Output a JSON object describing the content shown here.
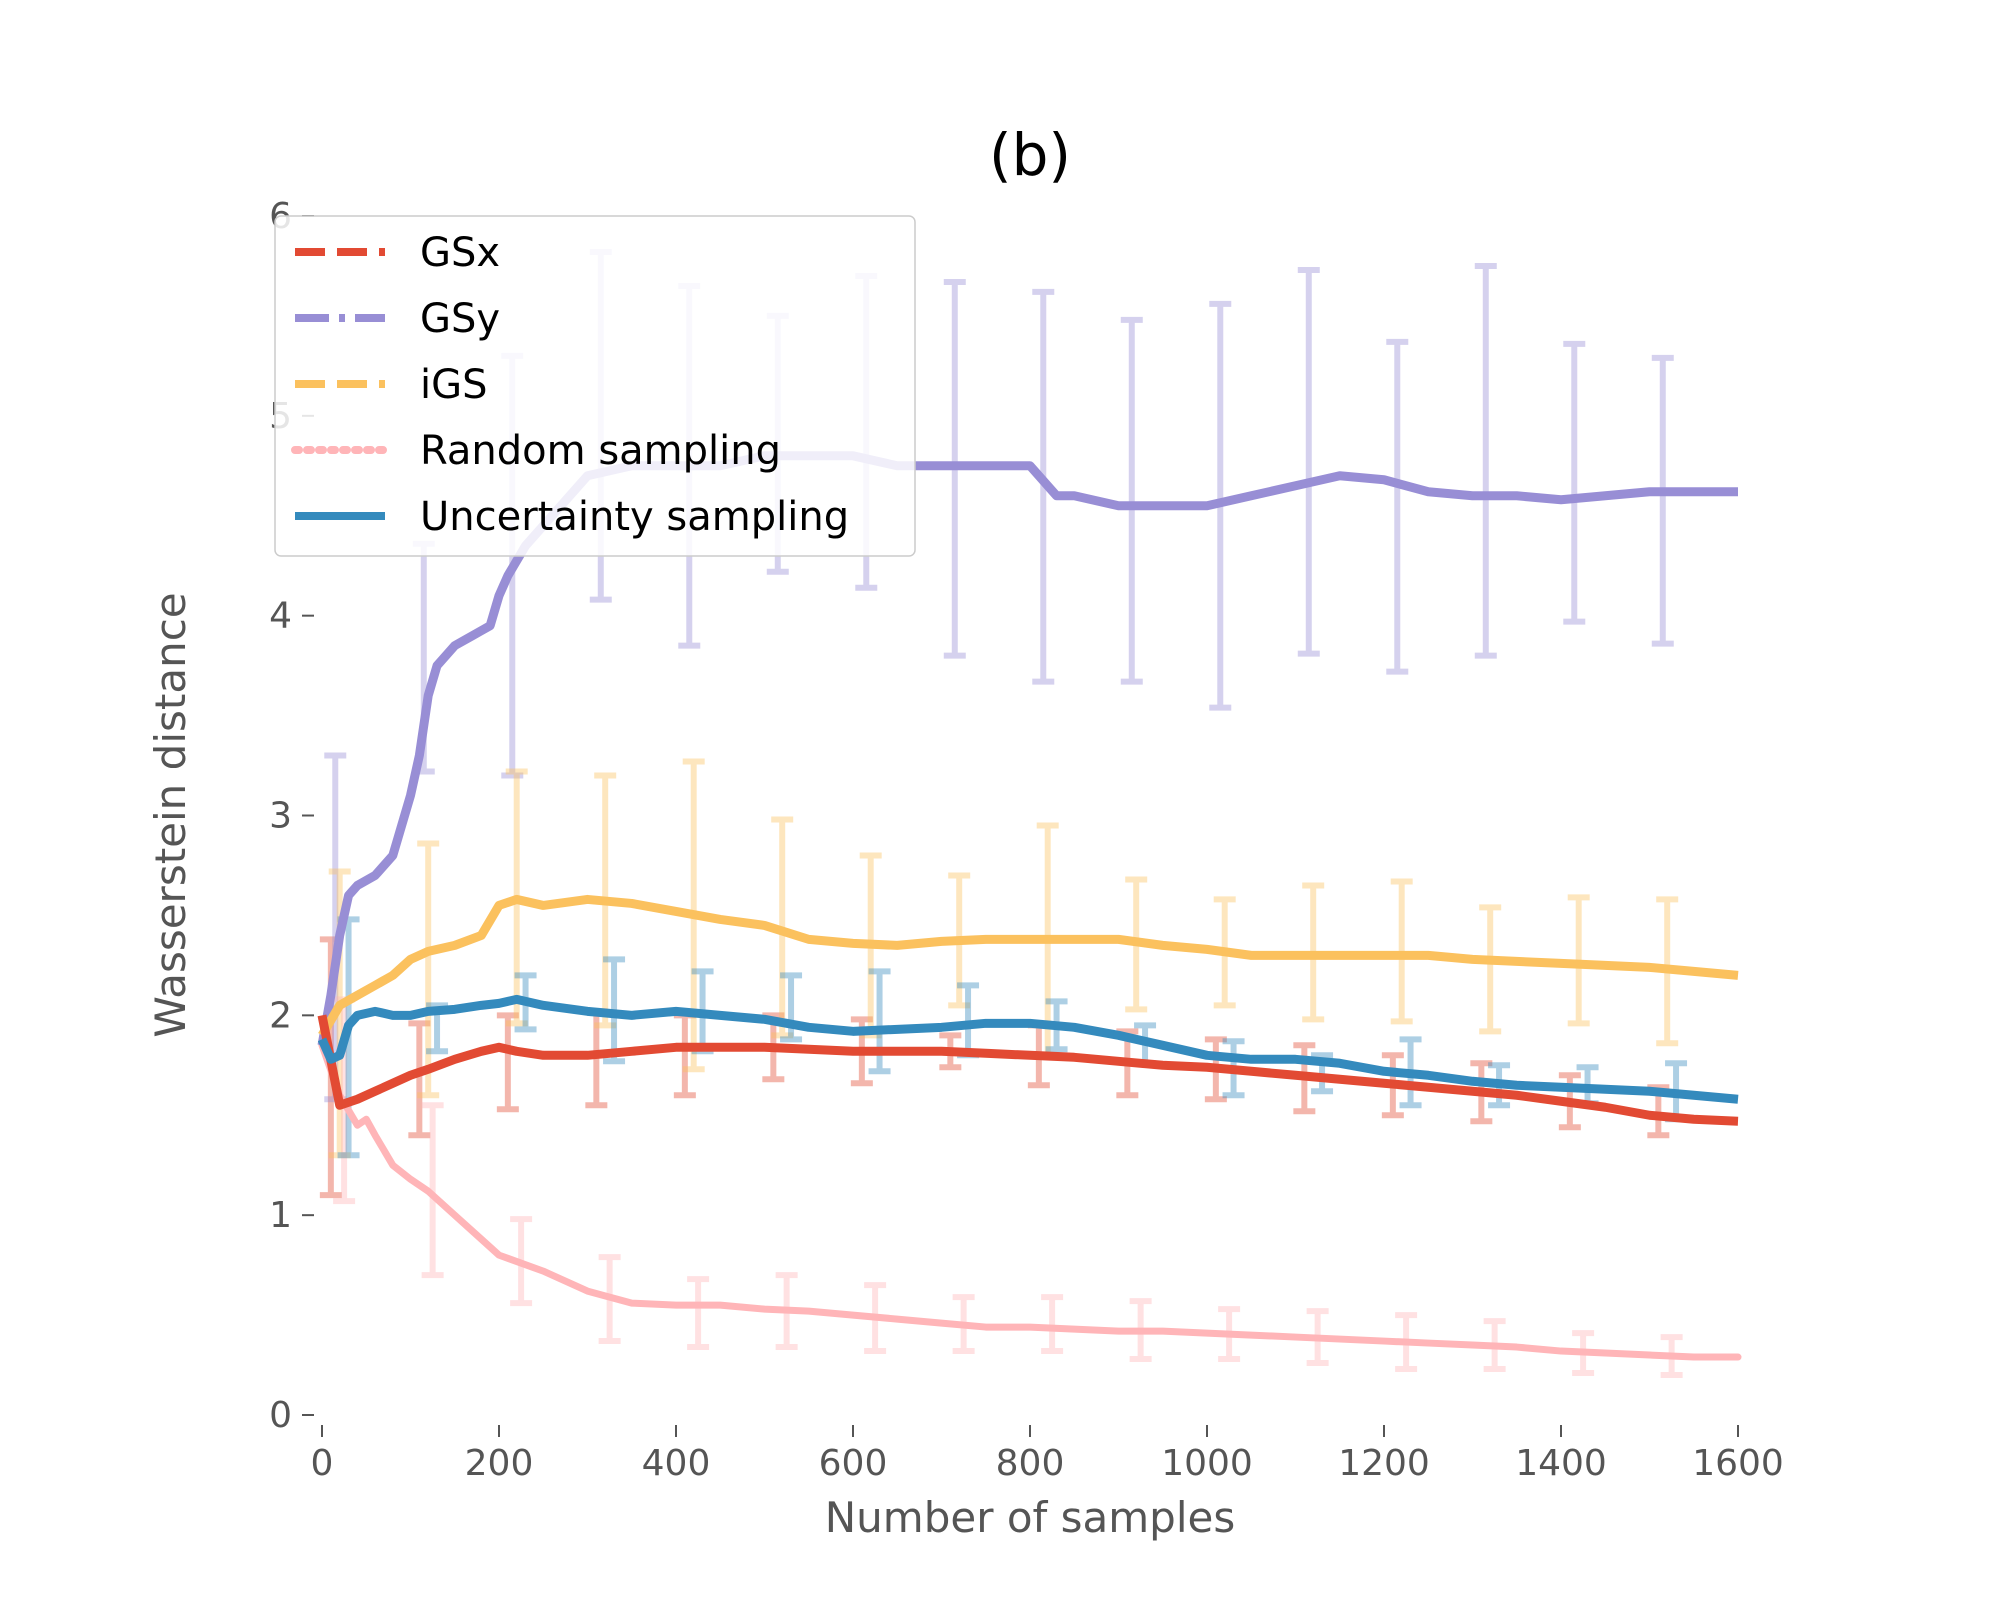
{
  "chart_data": {
    "type": "line",
    "title": "(b)",
    "xlabel": "Number of samples",
    "ylabel": "Wasserstein distance",
    "xlim": [
      0,
      1600
    ],
    "ylim": [
      0,
      6
    ],
    "x_ticks": [
      "0",
      "200",
      "400",
      "600",
      "800",
      "1000",
      "1200",
      "1400",
      "1600"
    ],
    "y_ticks": [
      "0",
      "1",
      "2",
      "3",
      "4",
      "5",
      "6"
    ],
    "grid": false,
    "legend_position": "top-left",
    "series": [
      {
        "name": "GSx",
        "color": "#e24a33",
        "line_style": "dashed",
        "x": [
          0,
          20,
          40,
          60,
          80,
          100,
          120,
          150,
          180,
          200,
          220,
          250,
          300,
          350,
          400,
          450,
          500,
          550,
          600,
          650,
          700,
          750,
          800,
          850,
          900,
          950,
          1000,
          1050,
          1100,
          1150,
          1200,
          1250,
          1300,
          1350,
          1400,
          1450,
          1500,
          1550,
          1600
        ],
        "y": [
          2.0,
          1.55,
          1.58,
          1.62,
          1.66,
          1.7,
          1.73,
          1.78,
          1.82,
          1.84,
          1.82,
          1.8,
          1.8,
          1.82,
          1.84,
          1.84,
          1.84,
          1.83,
          1.82,
          1.82,
          1.82,
          1.81,
          1.8,
          1.79,
          1.77,
          1.75,
          1.74,
          1.72,
          1.7,
          1.68,
          1.66,
          1.64,
          1.62,
          1.6,
          1.57,
          1.54,
          1.5,
          1.48,
          1.47
        ],
        "error_bars": [
          {
            "x": 10,
            "low": 1.1,
            "high": 2.38
          },
          {
            "x": 110,
            "low": 1.4,
            "high": 1.96
          },
          {
            "x": 210,
            "low": 1.53,
            "high": 2.0
          },
          {
            "x": 310,
            "low": 1.55,
            "high": 2.02
          },
          {
            "x": 410,
            "low": 1.6,
            "high": 2.0
          },
          {
            "x": 510,
            "low": 1.68,
            "high": 2.0
          },
          {
            "x": 610,
            "low": 1.66,
            "high": 1.98
          },
          {
            "x": 710,
            "low": 1.74,
            "high": 1.9
          },
          {
            "x": 810,
            "low": 1.65,
            "high": 1.95
          },
          {
            "x": 910,
            "low": 1.6,
            "high": 1.92
          },
          {
            "x": 1010,
            "low": 1.58,
            "high": 1.88
          },
          {
            "x": 1110,
            "low": 1.52,
            "high": 1.85
          },
          {
            "x": 1210,
            "low": 1.5,
            "high": 1.8
          },
          {
            "x": 1310,
            "low": 1.47,
            "high": 1.76
          },
          {
            "x": 1410,
            "low": 1.44,
            "high": 1.7
          },
          {
            "x": 1510,
            "low": 1.4,
            "high": 1.64
          }
        ]
      },
      {
        "name": "GSy",
        "color": "#988ed5",
        "line_style": "dashdot",
        "x": [
          0,
          10,
          20,
          30,
          40,
          60,
          80,
          100,
          110,
          120,
          130,
          150,
          170,
          190,
          200,
          210,
          230,
          260,
          300,
          350,
          400,
          450,
          500,
          550,
          600,
          650,
          700,
          750,
          800,
          830,
          850,
          900,
          950,
          1000,
          1050,
          1100,
          1150,
          1200,
          1250,
          1300,
          1350,
          1400,
          1450,
          1500,
          1550,
          1600
        ],
        "y": [
          1.85,
          2.1,
          2.4,
          2.6,
          2.65,
          2.7,
          2.8,
          3.1,
          3.3,
          3.6,
          3.75,
          3.85,
          3.9,
          3.95,
          4.1,
          4.2,
          4.35,
          4.5,
          4.7,
          4.75,
          4.75,
          4.75,
          4.8,
          4.8,
          4.8,
          4.75,
          4.75,
          4.75,
          4.75,
          4.6,
          4.6,
          4.55,
          4.55,
          4.55,
          4.6,
          4.65,
          4.7,
          4.68,
          4.62,
          4.6,
          4.6,
          4.58,
          4.6,
          4.62,
          4.62,
          4.62
        ],
        "error_bars": [
          {
            "x": 15,
            "low": 1.58,
            "high": 3.3
          },
          {
            "x": 115,
            "low": 3.22,
            "high": 4.36
          },
          {
            "x": 215,
            "low": 3.2,
            "high": 5.3
          },
          {
            "x": 315,
            "low": 4.08,
            "high": 5.82
          },
          {
            "x": 415,
            "low": 3.85,
            "high": 5.65
          },
          {
            "x": 515,
            "low": 4.22,
            "high": 5.5
          },
          {
            "x": 615,
            "low": 4.14,
            "high": 5.7
          },
          {
            "x": 715,
            "low": 3.8,
            "high": 5.67
          },
          {
            "x": 815,
            "low": 3.67,
            "high": 5.62
          },
          {
            "x": 915,
            "low": 3.67,
            "high": 5.48
          },
          {
            "x": 1015,
            "low": 3.54,
            "high": 5.56
          },
          {
            "x": 1115,
            "low": 3.81,
            "high": 5.73
          },
          {
            "x": 1215,
            "low": 3.72,
            "high": 5.37
          },
          {
            "x": 1315,
            "low": 3.8,
            "high": 5.75
          },
          {
            "x": 1415,
            "low": 3.97,
            "high": 5.36
          },
          {
            "x": 1515,
            "low": 3.86,
            "high": 5.29
          }
        ]
      },
      {
        "name": "iGS",
        "color": "#fbc15e",
        "line_style": "dashed",
        "x": [
          0,
          20,
          40,
          60,
          80,
          100,
          120,
          150,
          180,
          200,
          220,
          250,
          300,
          350,
          400,
          450,
          500,
          550,
          600,
          650,
          700,
          750,
          800,
          850,
          900,
          950,
          1000,
          1050,
          1100,
          1150,
          1200,
          1250,
          1300,
          1350,
          1400,
          1450,
          1500,
          1550,
          1600
        ],
        "y": [
          1.9,
          2.05,
          2.1,
          2.15,
          2.2,
          2.28,
          2.32,
          2.35,
          2.4,
          2.55,
          2.58,
          2.55,
          2.58,
          2.56,
          2.52,
          2.48,
          2.45,
          2.38,
          2.36,
          2.35,
          2.37,
          2.38,
          2.38,
          2.38,
          2.38,
          2.35,
          2.33,
          2.3,
          2.3,
          2.3,
          2.3,
          2.3,
          2.28,
          2.27,
          2.26,
          2.25,
          2.24,
          2.22,
          2.2
        ],
        "error_bars": [
          {
            "x": 20,
            "low": 1.3,
            "high": 2.72
          },
          {
            "x": 120,
            "low": 1.6,
            "high": 2.86
          },
          {
            "x": 220,
            "low": 1.96,
            "high": 3.22
          },
          {
            "x": 320,
            "low": 1.95,
            "high": 3.2
          },
          {
            "x": 420,
            "low": 1.73,
            "high": 3.27
          },
          {
            "x": 520,
            "low": 1.9,
            "high": 2.98
          },
          {
            "x": 620,
            "low": 1.9,
            "high": 2.8
          },
          {
            "x": 720,
            "low": 2.05,
            "high": 2.7
          },
          {
            "x": 820,
            "low": 1.8,
            "high": 2.95
          },
          {
            "x": 920,
            "low": 2.03,
            "high": 2.68
          },
          {
            "x": 1020,
            "low": 2.05,
            "high": 2.58
          },
          {
            "x": 1120,
            "low": 1.98,
            "high": 2.65
          },
          {
            "x": 1220,
            "low": 1.97,
            "high": 2.67
          },
          {
            "x": 1320,
            "low": 1.92,
            "high": 2.54
          },
          {
            "x": 1420,
            "low": 1.96,
            "high": 2.59
          },
          {
            "x": 1520,
            "low": 1.86,
            "high": 2.58
          }
        ]
      },
      {
        "name": "Random sampling",
        "color": "#ffb5b8",
        "line_style": "dotted",
        "x": [
          0,
          20,
          40,
          50,
          60,
          80,
          100,
          120,
          150,
          180,
          200,
          250,
          300,
          350,
          400,
          450,
          500,
          550,
          600,
          650,
          700,
          750,
          800,
          850,
          900,
          950,
          1000,
          1050,
          1100,
          1150,
          1200,
          1250,
          1300,
          1350,
          1400,
          1450,
          1500,
          1550,
          1600
        ],
        "y": [
          1.85,
          1.6,
          1.45,
          1.48,
          1.4,
          1.25,
          1.18,
          1.12,
          1.0,
          0.88,
          0.8,
          0.72,
          0.62,
          0.56,
          0.55,
          0.55,
          0.53,
          0.52,
          0.5,
          0.48,
          0.46,
          0.44,
          0.44,
          0.43,
          0.42,
          0.42,
          0.41,
          0.4,
          0.39,
          0.38,
          0.37,
          0.36,
          0.35,
          0.34,
          0.32,
          0.31,
          0.3,
          0.29,
          0.29
        ],
        "error_bars": [
          {
            "x": 25,
            "low": 1.07,
            "high": 2.08
          },
          {
            "x": 125,
            "low": 0.7,
            "high": 1.55
          },
          {
            "x": 225,
            "low": 0.56,
            "high": 0.98
          },
          {
            "x": 325,
            "low": 0.37,
            "high": 0.79
          },
          {
            "x": 425,
            "low": 0.34,
            "high": 0.68
          },
          {
            "x": 525,
            "low": 0.34,
            "high": 0.7
          },
          {
            "x": 625,
            "low": 0.32,
            "high": 0.65
          },
          {
            "x": 725,
            "low": 0.32,
            "high": 0.59
          },
          {
            "x": 825,
            "low": 0.32,
            "high": 0.59
          },
          {
            "x": 925,
            "low": 0.28,
            "high": 0.57
          },
          {
            "x": 1025,
            "low": 0.28,
            "high": 0.53
          },
          {
            "x": 1125,
            "low": 0.26,
            "high": 0.52
          },
          {
            "x": 1225,
            "low": 0.23,
            "high": 0.5
          },
          {
            "x": 1325,
            "low": 0.23,
            "high": 0.47
          },
          {
            "x": 1425,
            "low": 0.21,
            "high": 0.41
          },
          {
            "x": 1525,
            "low": 0.2,
            "high": 0.39
          }
        ]
      },
      {
        "name": "Uncertainty sampling",
        "color": "#348abd",
        "line_style": "solid",
        "x": [
          0,
          10,
          20,
          30,
          40,
          60,
          80,
          100,
          120,
          150,
          180,
          200,
          220,
          250,
          300,
          350,
          400,
          450,
          500,
          550,
          600,
          650,
          700,
          750,
          800,
          850,
          900,
          950,
          1000,
          1050,
          1100,
          1150,
          1200,
          1250,
          1300,
          1350,
          1400,
          1450,
          1500,
          1550,
          1600
        ],
        "y": [
          1.88,
          1.78,
          1.8,
          1.95,
          2.0,
          2.02,
          2.0,
          2.0,
          2.02,
          2.03,
          2.05,
          2.06,
          2.08,
          2.05,
          2.02,
          2.0,
          2.02,
          2.0,
          1.98,
          1.94,
          1.92,
          1.93,
          1.94,
          1.96,
          1.96,
          1.94,
          1.9,
          1.85,
          1.8,
          1.78,
          1.78,
          1.76,
          1.72,
          1.7,
          1.67,
          1.65,
          1.64,
          1.63,
          1.62,
          1.6,
          1.58
        ],
        "error_bars": [
          {
            "x": 30,
            "low": 1.3,
            "high": 2.48
          },
          {
            "x": 130,
            "low": 1.82,
            "high": 2.05
          },
          {
            "x": 230,
            "low": 1.93,
            "high": 2.2
          },
          {
            "x": 330,
            "low": 1.77,
            "high": 2.28
          },
          {
            "x": 430,
            "low": 1.82,
            "high": 2.22
          },
          {
            "x": 530,
            "low": 1.88,
            "high": 2.2
          },
          {
            "x": 630,
            "low": 1.72,
            "high": 2.22
          },
          {
            "x": 730,
            "low": 1.8,
            "high": 2.15
          },
          {
            "x": 830,
            "low": 1.83,
            "high": 2.07
          },
          {
            "x": 930,
            "low": 1.76,
            "high": 1.95
          },
          {
            "x": 1030,
            "low": 1.6,
            "high": 1.87
          },
          {
            "x": 1130,
            "low": 1.62,
            "high": 1.8
          },
          {
            "x": 1230,
            "low": 1.55,
            "high": 1.88
          },
          {
            "x": 1330,
            "low": 1.55,
            "high": 1.75
          },
          {
            "x": 1430,
            "low": 1.56,
            "high": 1.74
          },
          {
            "x": 1530,
            "low": 1.48,
            "high": 1.76
          }
        ]
      }
    ]
  }
}
